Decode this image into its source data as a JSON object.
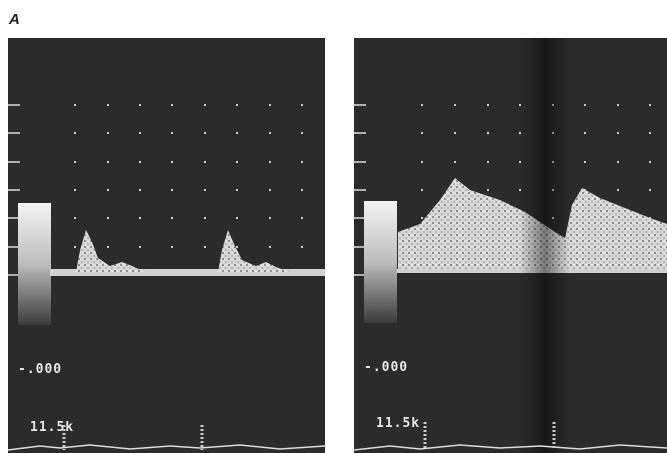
{
  "label": "A",
  "panels": [
    {
      "scale_label": "-.000",
      "frequency_label": "11.5k"
    },
    {
      "scale_label": "-.000",
      "frequency_label": "11.5k"
    }
  ]
}
